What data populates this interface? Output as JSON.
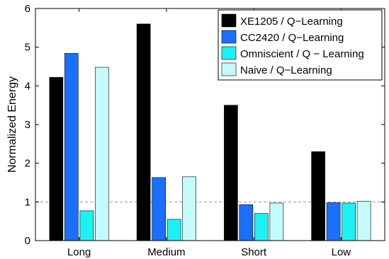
{
  "chart_data": {
    "type": "bar",
    "title": "",
    "xlabel": "",
    "ylabel": "Normalized Energy",
    "ylim": [
      0,
      6
    ],
    "yticks": [
      0,
      1,
      2,
      3,
      4,
      5,
      6
    ],
    "categories": [
      "Long",
      "Medium",
      "Short",
      "Low"
    ],
    "reference_line": {
      "y": 1,
      "style": "dashed",
      "color": "#9a9a9a"
    },
    "grid": false,
    "legend_position": "top-right",
    "series": [
      {
        "name": "XE1205 / Q−Learning",
        "color": "#000000",
        "values": [
          4.22,
          5.6,
          3.5,
          2.3
        ]
      },
      {
        "name": "CC2420 / Q−Learning",
        "color": "#1a6fff",
        "values": [
          4.84,
          1.63,
          0.93,
          0.98
        ]
      },
      {
        "name": "Omniscient / Q − Learning",
        "color": "#1df2f2",
        "values": [
          0.77,
          0.55,
          0.7,
          0.97
        ]
      },
      {
        "name": "Naive / Q−Learning",
        "color": "#c3fbfb",
        "values": [
          4.48,
          1.65,
          0.97,
          1.02
        ]
      }
    ]
  }
}
